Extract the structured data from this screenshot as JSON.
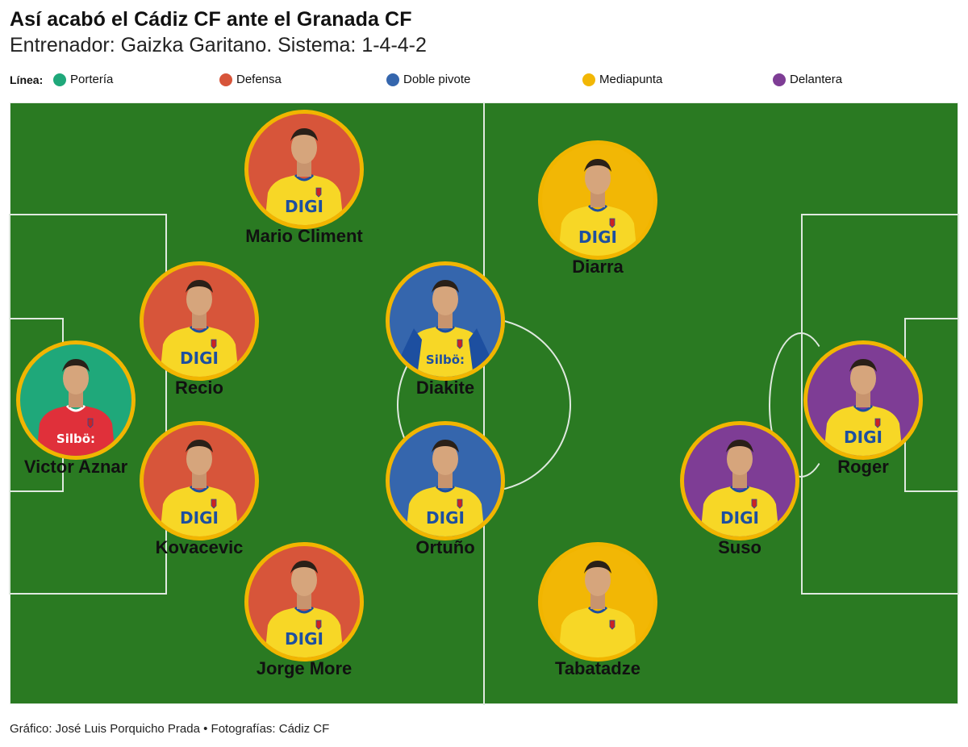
{
  "header": {
    "title": "Así acabó el Cádiz CF ante el Granada CF",
    "subtitle": "Entrenador: Gaizka Garitano. Sistema: 1-4-4-2"
  },
  "legend": {
    "label": "Línea:",
    "items": [
      {
        "label": "Portería",
        "color": "#1fa87a"
      },
      {
        "label": "Defensa",
        "color": "#d7553a"
      },
      {
        "label": "Doble pivote",
        "color": "#3566ad"
      },
      {
        "label": "Mediapunta",
        "color": "#f2b705"
      },
      {
        "label": "Delantera",
        "color": "#7e3d95"
      }
    ]
  },
  "players": [
    {
      "name": "Mario Climent",
      "line": "Defensa",
      "color": "#d7553a",
      "sponsor": "DIGI",
      "kit": "yellow"
    },
    {
      "name": "Recio",
      "line": "Defensa",
      "color": "#d7553a",
      "sponsor": "DIGI",
      "kit": "yellow"
    },
    {
      "name": "Victor Aznar",
      "line": "Portería",
      "color": "#1fa87a",
      "sponsor": "Silbö:",
      "kit": "red"
    },
    {
      "name": "Kovacevic",
      "line": "Defensa",
      "color": "#d7553a",
      "sponsor": "DIGI",
      "kit": "yellow"
    },
    {
      "name": "Jorge More",
      "line": "Defensa",
      "color": "#d7553a",
      "sponsor": "DIGI",
      "kit": "yellow"
    },
    {
      "name": "Diakite",
      "line": "Doble pivote",
      "color": "#3566ad",
      "sponsor": "Silbö:",
      "kit": "yellow-blue"
    },
    {
      "name": "Ortuño",
      "line": "Doble pivote",
      "color": "#3566ad",
      "sponsor": "DIGI",
      "kit": "yellow"
    },
    {
      "name": "Diarra",
      "line": "Mediapunta",
      "color": "#f2b705",
      "sponsor": "DIGI",
      "kit": "yellow"
    },
    {
      "name": "Tabatadze",
      "line": "Mediapunta",
      "color": "#f2b705",
      "sponsor": "",
      "kit": "yellow"
    },
    {
      "name": "Suso",
      "line": "Delantera",
      "color": "#7e3d95",
      "sponsor": "DIGI",
      "kit": "yellow"
    },
    {
      "name": "Roger",
      "line": "Delantera",
      "color": "#7e3d95",
      "sponsor": "DIGI",
      "kit": "yellow"
    }
  ],
  "colors": {
    "pitch": "#2a7a22",
    "ring": "#f1b500"
  },
  "footer": {
    "credit": "Gráfico: José Luis Porquicho Prada • Fotografías: Cádiz CF"
  }
}
